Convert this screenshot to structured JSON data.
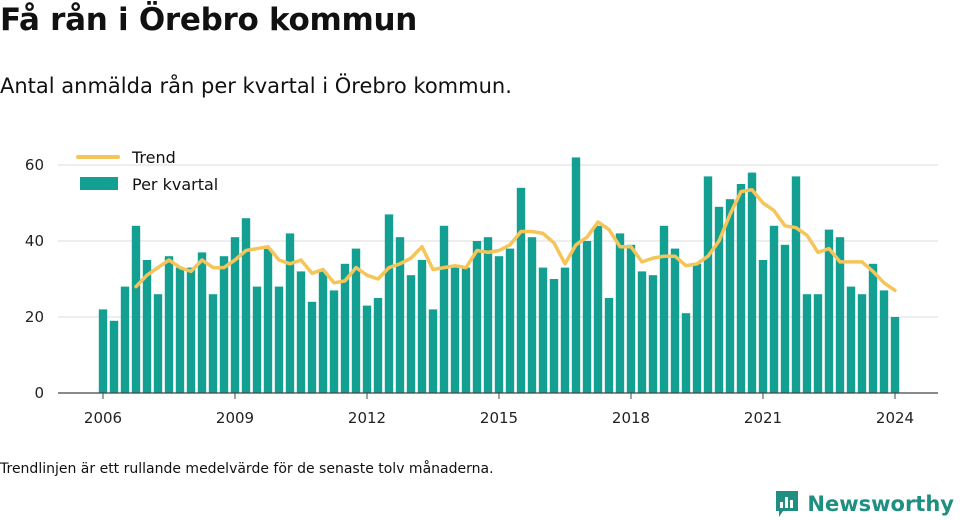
{
  "title": "Få rån i Örebro kommun",
  "subtitle": "Antal anmälda rån per kvartal i Örebro kommun.",
  "footnote": "Trendlinjen är ett rullande medelvärde för de senaste tolv månaderna.",
  "brand": {
    "name": "Newsworthy",
    "icon": "bar-chart-badge-icon"
  },
  "colors": {
    "bar": "#13a092",
    "trend": "#f6c559",
    "grid": "#dddddd",
    "axis": "#444444",
    "brand": "#1e8f80"
  },
  "chart_data": {
    "type": "bar",
    "x_start": "2006 Q1",
    "x_ticks": [
      "2006",
      "2009",
      "2012",
      "2015",
      "2018",
      "2021",
      "2024"
    ],
    "y_ticks": [
      "0",
      "20",
      "40",
      "60"
    ],
    "ylim": [
      0,
      65
    ],
    "grid": true,
    "legend_position": "top-left",
    "series": [
      {
        "name": "Per kvartal",
        "type": "bar",
        "values": [
          22,
          19,
          28,
          44,
          35,
          26,
          36,
          33,
          33,
          37,
          26,
          36,
          41,
          46,
          28,
          38,
          28,
          42,
          32,
          24,
          32,
          27,
          34,
          38,
          23,
          25,
          47,
          41,
          31,
          35,
          22,
          44,
          33,
          33,
          40,
          41,
          36,
          38,
          54,
          41,
          33,
          30,
          33,
          62,
          40,
          44,
          25,
          42,
          39,
          32,
          31,
          44,
          38,
          21,
          34,
          57,
          49,
          51,
          55,
          58,
          35,
          44,
          39,
          57,
          26,
          26,
          43,
          41,
          28,
          26,
          34,
          27,
          20
        ]
      },
      {
        "name": "Trend",
        "type": "line",
        "values": [
          null,
          null,
          null,
          28,
          31,
          33,
          35,
          33,
          32,
          35,
          33,
          33,
          35,
          37.5,
          38,
          38.5,
          35,
          34,
          35,
          31.5,
          32.5,
          29,
          29.5,
          33,
          31,
          30,
          33,
          34,
          35.5,
          38.5,
          32.5,
          33,
          33.5,
          33,
          37.5,
          37,
          37.5,
          39,
          42.5,
          42.5,
          42,
          39.5,
          34,
          39,
          41,
          45,
          43,
          38.5,
          38.5,
          34.5,
          35.5,
          36,
          36,
          33.5,
          34,
          36,
          40,
          47,
          53,
          53.5,
          50,
          48,
          44,
          43.5,
          41.5,
          37,
          38,
          34.5,
          34.5,
          34.5,
          32,
          29,
          27
        ]
      }
    ]
  }
}
